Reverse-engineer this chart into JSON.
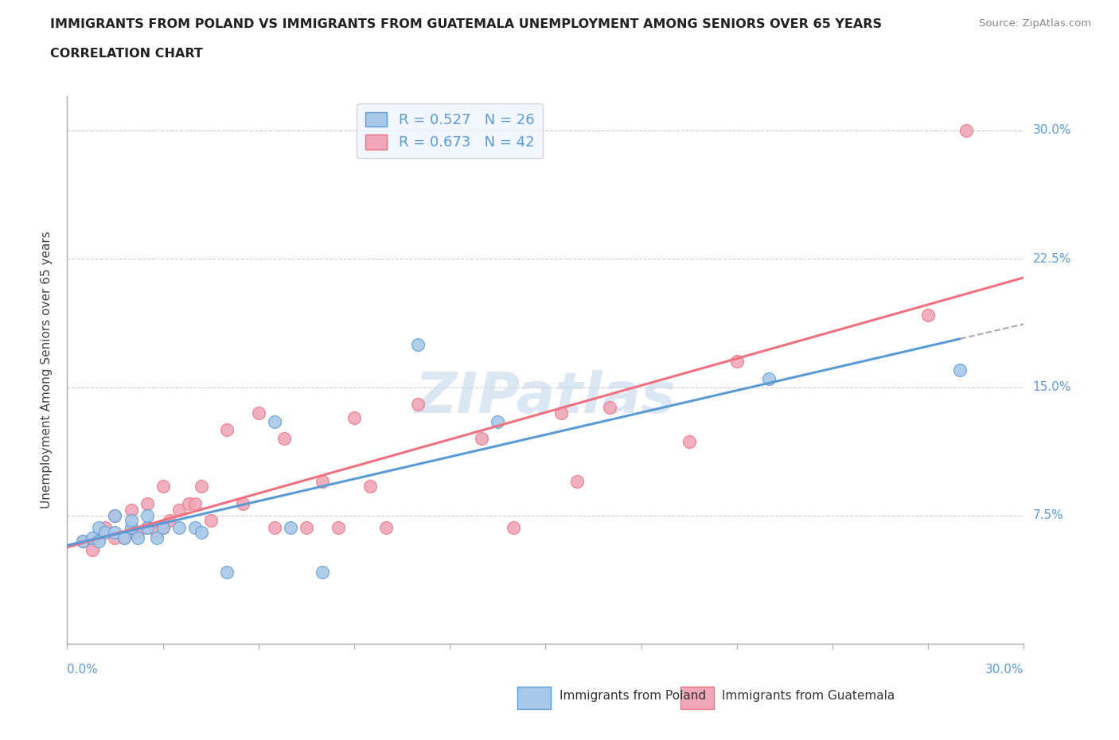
{
  "title_line1": "IMMIGRANTS FROM POLAND VS IMMIGRANTS FROM GUATEMALA UNEMPLOYMENT AMONG SENIORS OVER 65 YEARS",
  "title_line2": "CORRELATION CHART",
  "source_text": "Source: ZipAtlas.com",
  "ylabel": "Unemployment Among Seniors over 65 years",
  "xlim": [
    0.0,
    0.3
  ],
  "ylim": [
    0.0,
    0.32
  ],
  "poland_R": 0.527,
  "poland_N": 26,
  "guatemala_R": 0.673,
  "guatemala_N": 42,
  "poland_color": "#a8c8e8",
  "guatemala_color": "#f0a8b8",
  "poland_line_color": "#5b9bd5",
  "guatemala_line_color": "#f07080",
  "dashed_line_color": "#aaaaaa",
  "background_color": "#ffffff",
  "grid_color": "#cccccc",
  "poland_x": [
    0.005,
    0.008,
    0.01,
    0.01,
    0.012,
    0.015,
    0.015,
    0.018,
    0.02,
    0.02,
    0.022,
    0.025,
    0.025,
    0.028,
    0.03,
    0.035,
    0.04,
    0.042,
    0.05,
    0.065,
    0.07,
    0.08,
    0.11,
    0.135,
    0.22,
    0.28
  ],
  "poland_y": [
    0.06,
    0.062,
    0.06,
    0.068,
    0.065,
    0.065,
    0.075,
    0.062,
    0.068,
    0.072,
    0.062,
    0.068,
    0.075,
    0.062,
    0.068,
    0.068,
    0.068,
    0.065,
    0.042,
    0.13,
    0.068,
    0.042,
    0.175,
    0.13,
    0.155,
    0.16
  ],
  "guatemala_x": [
    0.005,
    0.008,
    0.01,
    0.012,
    0.015,
    0.015,
    0.018,
    0.02,
    0.02,
    0.022,
    0.025,
    0.025,
    0.028,
    0.03,
    0.03,
    0.032,
    0.035,
    0.038,
    0.04,
    0.042,
    0.045,
    0.05,
    0.055,
    0.06,
    0.065,
    0.068,
    0.075,
    0.08,
    0.085,
    0.09,
    0.095,
    0.1,
    0.11,
    0.13,
    0.14,
    0.155,
    0.16,
    0.17,
    0.195,
    0.21,
    0.27,
    0.282
  ],
  "guatemala_y": [
    0.06,
    0.055,
    0.062,
    0.068,
    0.062,
    0.075,
    0.062,
    0.065,
    0.078,
    0.065,
    0.068,
    0.082,
    0.065,
    0.068,
    0.092,
    0.072,
    0.078,
    0.082,
    0.082,
    0.092,
    0.072,
    0.125,
    0.082,
    0.135,
    0.068,
    0.12,
    0.068,
    0.095,
    0.068,
    0.132,
    0.092,
    0.068,
    0.14,
    0.12,
    0.068,
    0.135,
    0.095,
    0.138,
    0.118,
    0.165,
    0.192,
    0.3
  ],
  "legend_box_facecolor": "#eef4ff",
  "legend_box_edgecolor": "#cccccc",
  "watermark_text": "ZIPatlas",
  "watermark_color": "#c5d8ee",
  "watermark_alpha": 0.6,
  "bottom_legend_label1": "Immigrants from Poland",
  "bottom_legend_label2": "Immigrants from Guatemala"
}
